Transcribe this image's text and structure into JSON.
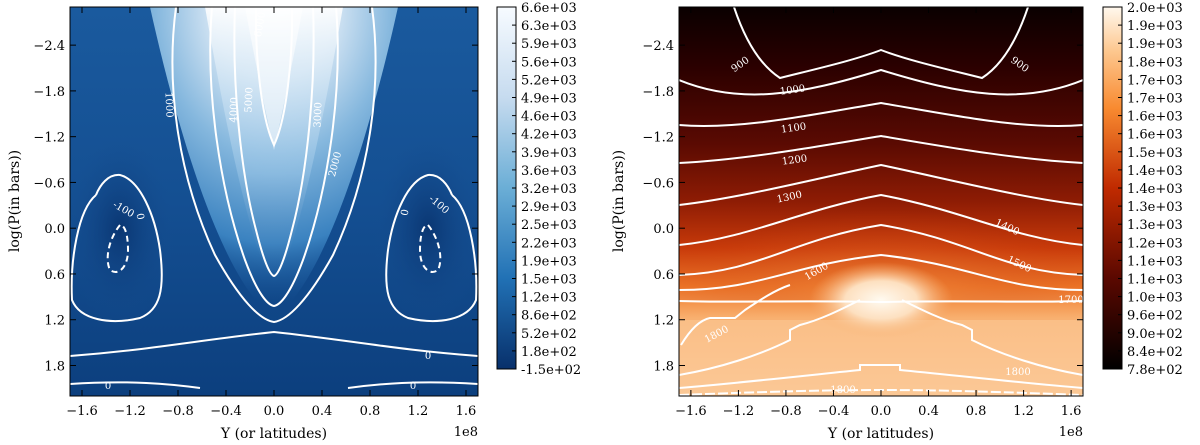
{
  "chart_data": [
    {
      "type": "heatmap",
      "subtype": "filled-contour",
      "title": "",
      "xlabel": "Y (or latitudes)",
      "ylabel": "log(P(in bars))",
      "x_offset_label": "1e8",
      "xlim": [
        -1.7,
        1.7
      ],
      "ylim_inverted": [
        2.2,
        -2.9
      ],
      "xticks": [
        "−1.6",
        "−1.2",
        "−0.8",
        "−0.4",
        "0.0",
        "0.4",
        "0.8",
        "1.2",
        "1.6"
      ],
      "yticks": [
        "−2.4",
        "−1.8",
        "−1.2",
        "−0.6",
        "0.0",
        "0.6",
        "1.2",
        "1.8"
      ],
      "colormap": "Blues_r",
      "colorbar_ticks": [
        "6.6e+03",
        "6.3e+03",
        "5.9e+03",
        "5.6e+03",
        "5.2e+03",
        "4.9e+03",
        "4.6e+03",
        "4.2e+03",
        "3.9e+03",
        "3.6e+03",
        "3.2e+03",
        "2.9e+03",
        "2.5e+03",
        "2.2e+03",
        "1.9e+03",
        "1.5e+03",
        "1.2e+03",
        "8.6e+02",
        "5.2e+02",
        "1.8e+02",
        "-1.5e+02"
      ],
      "colorbar_range": [
        -150,
        6600
      ],
      "contour_labels": [
        "1000",
        "4000",
        "5000",
        "6000",
        "3000",
        "2000",
        "-100",
        "0",
        "0",
        "-100",
        "0",
        "0",
        "0"
      ],
      "colors": {
        "low": "#083a7a",
        "mid": "#4a90c8",
        "high": "#f7fbff"
      }
    },
    {
      "type": "heatmap",
      "subtype": "filled-contour",
      "title": "",
      "xlabel": "Y (or latitudes)",
      "ylabel": "log(P(in bars))",
      "x_offset_label": "1e8",
      "xlim": [
        -1.7,
        1.7
      ],
      "ylim_inverted": [
        2.2,
        -2.9
      ],
      "xticks": [
        "−1.6",
        "−1.2",
        "−0.8",
        "−0.4",
        "0.0",
        "0.4",
        "0.8",
        "1.2",
        "1.6"
      ],
      "yticks": [
        "−2.4",
        "−1.8",
        "−1.2",
        "−0.6",
        "0.0",
        "0.6",
        "1.2",
        "1.8"
      ],
      "colormap": "gist_heat",
      "colorbar_ticks": [
        "2.0e+03",
        "1.9e+03",
        "1.9e+03",
        "1.8e+03",
        "1.7e+03",
        "1.7e+03",
        "1.6e+03",
        "1.6e+03",
        "1.5e+03",
        "1.4e+03",
        "1.4e+03",
        "1.3e+03",
        "1.3e+03",
        "1.2e+03",
        "1.1e+03",
        "1.1e+03",
        "1.0e+03",
        "9.6e+02",
        "9.0e+02",
        "8.4e+02",
        "7.8e+02"
      ],
      "colorbar_range": [
        780,
        2000
      ],
      "contour_labels": [
        "900",
        "900",
        "1000",
        "1100",
        "1200",
        "1300",
        "1400",
        "1500",
        "1600",
        "1700",
        "1800",
        "1800",
        "1800"
      ],
      "colors": {
        "low": "#000000",
        "mid": "#c82808",
        "high": "#fff4e6"
      }
    }
  ]
}
